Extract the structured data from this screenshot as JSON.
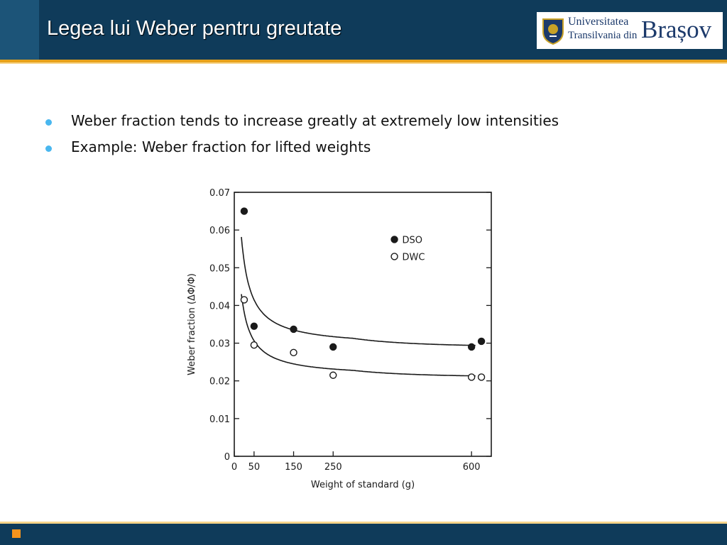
{
  "slide": {
    "title": "Legea lui Weber pentru greutate",
    "bullets": [
      "Weber fraction tends to increase greatly at extremely low intensities",
      "Example: Weber fraction for lifted weights"
    ]
  },
  "logo": {
    "line1": "Universitatea",
    "line2": "Transilvania din",
    "line3": "Brașov"
  },
  "colors": {
    "header": "#0f3b5a",
    "accent": "#e8a21b",
    "bullet": "#49b7ef"
  },
  "chart_data": {
    "type": "scatter",
    "xlabel": "Weight  of  standard  (g)",
    "ylabel": "Weber  fraction  (ΔΦ/Φ)",
    "xlim": [
      0,
      650
    ],
    "ylim": [
      0,
      0.07
    ],
    "x_ticks": [
      0,
      50,
      150,
      250,
      600
    ],
    "x_tick_labels": [
      "0",
      "50",
      "150",
      "250",
      "600"
    ],
    "y_ticks": [
      0,
      0.01,
      0.02,
      0.03,
      0.04,
      0.05,
      0.06,
      0.07
    ],
    "y_tick_labels": [
      "0",
      "0.01",
      "0.02",
      "0.03",
      "0.04",
      "0.05",
      "0.06",
      "0.07"
    ],
    "legend_position": "top-right",
    "series": [
      {
        "name": "DSO",
        "marker": "filled-circle",
        "x": [
          25,
          50,
          150,
          250,
          600,
          625
        ],
        "y": [
          0.065,
          0.0345,
          0.0337,
          0.029,
          0.029,
          0.0305
        ]
      },
      {
        "name": "DWC",
        "marker": "open-circle",
        "x": [
          25,
          50,
          150,
          250,
          600,
          625
        ],
        "y": [
          0.0415,
          0.0295,
          0.0275,
          0.0215,
          0.021,
          0.021
        ]
      }
    ]
  }
}
